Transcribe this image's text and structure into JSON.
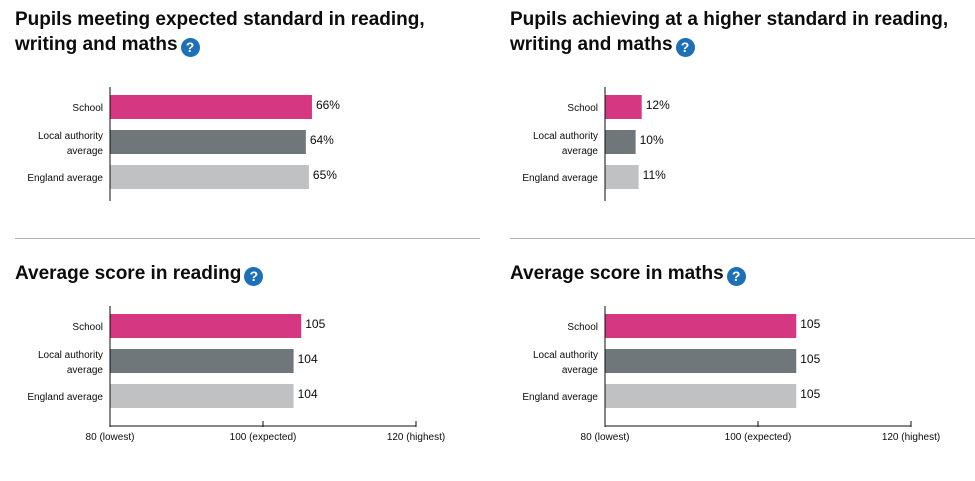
{
  "panels": [
    {
      "title": "Pupils meeting expected standard in reading, writing and maths",
      "help_icon": "question-circle-icon"
    },
    {
      "title": "Pupils achieving at a higher standard in reading, writing and maths",
      "help_icon": "question-circle-icon"
    },
    {
      "title": "Average score in reading",
      "help_icon": "question-circle-icon"
    },
    {
      "title": "Average score in maths",
      "help_icon": "question-circle-icon"
    }
  ],
  "colors": {
    "school": "#d53880",
    "local_authority": "#6f777b",
    "england": "#bfc1c3",
    "axis": "#0b0c0c",
    "help_icon": "#1d70b8"
  },
  "chart_data": [
    {
      "type": "bar",
      "orientation": "horizontal",
      "categories": [
        "School",
        "Local authority average",
        "England average"
      ],
      "values": [
        66,
        64,
        65
      ],
      "value_labels": [
        "66%",
        "64%",
        "65%"
      ],
      "xlim": [
        0,
        100
      ],
      "title": "Pupils meeting expected standard in reading, writing and maths"
    },
    {
      "type": "bar",
      "orientation": "horizontal",
      "categories": [
        "School",
        "Local authority average",
        "England average"
      ],
      "values": [
        12,
        10,
        11
      ],
      "value_labels": [
        "12%",
        "10%",
        "11%"
      ],
      "xlim": [
        0,
        100
      ],
      "title": "Pupils achieving at a higher standard in reading, writing and maths"
    },
    {
      "type": "bar",
      "orientation": "horizontal",
      "categories": [
        "School",
        "Local authority average",
        "England average"
      ],
      "values": [
        105,
        104,
        104
      ],
      "value_labels": [
        "105",
        "104",
        "104"
      ],
      "xlim": [
        80,
        120
      ],
      "ticks": [
        80,
        100,
        120
      ],
      "tick_labels": [
        "80 (lowest)",
        "100 (expected)",
        "120 (highest)"
      ],
      "title": "Average score in reading"
    },
    {
      "type": "bar",
      "orientation": "horizontal",
      "categories": [
        "School",
        "Local authority average",
        "England average"
      ],
      "values": [
        105,
        105,
        105
      ],
      "value_labels": [
        "105",
        "105",
        "105"
      ],
      "xlim": [
        80,
        120
      ],
      "ticks": [
        80,
        100,
        120
      ],
      "tick_labels": [
        "80 (lowest)",
        "100 (expected)",
        "120 (highest)"
      ],
      "title": "Average score in maths"
    }
  ]
}
